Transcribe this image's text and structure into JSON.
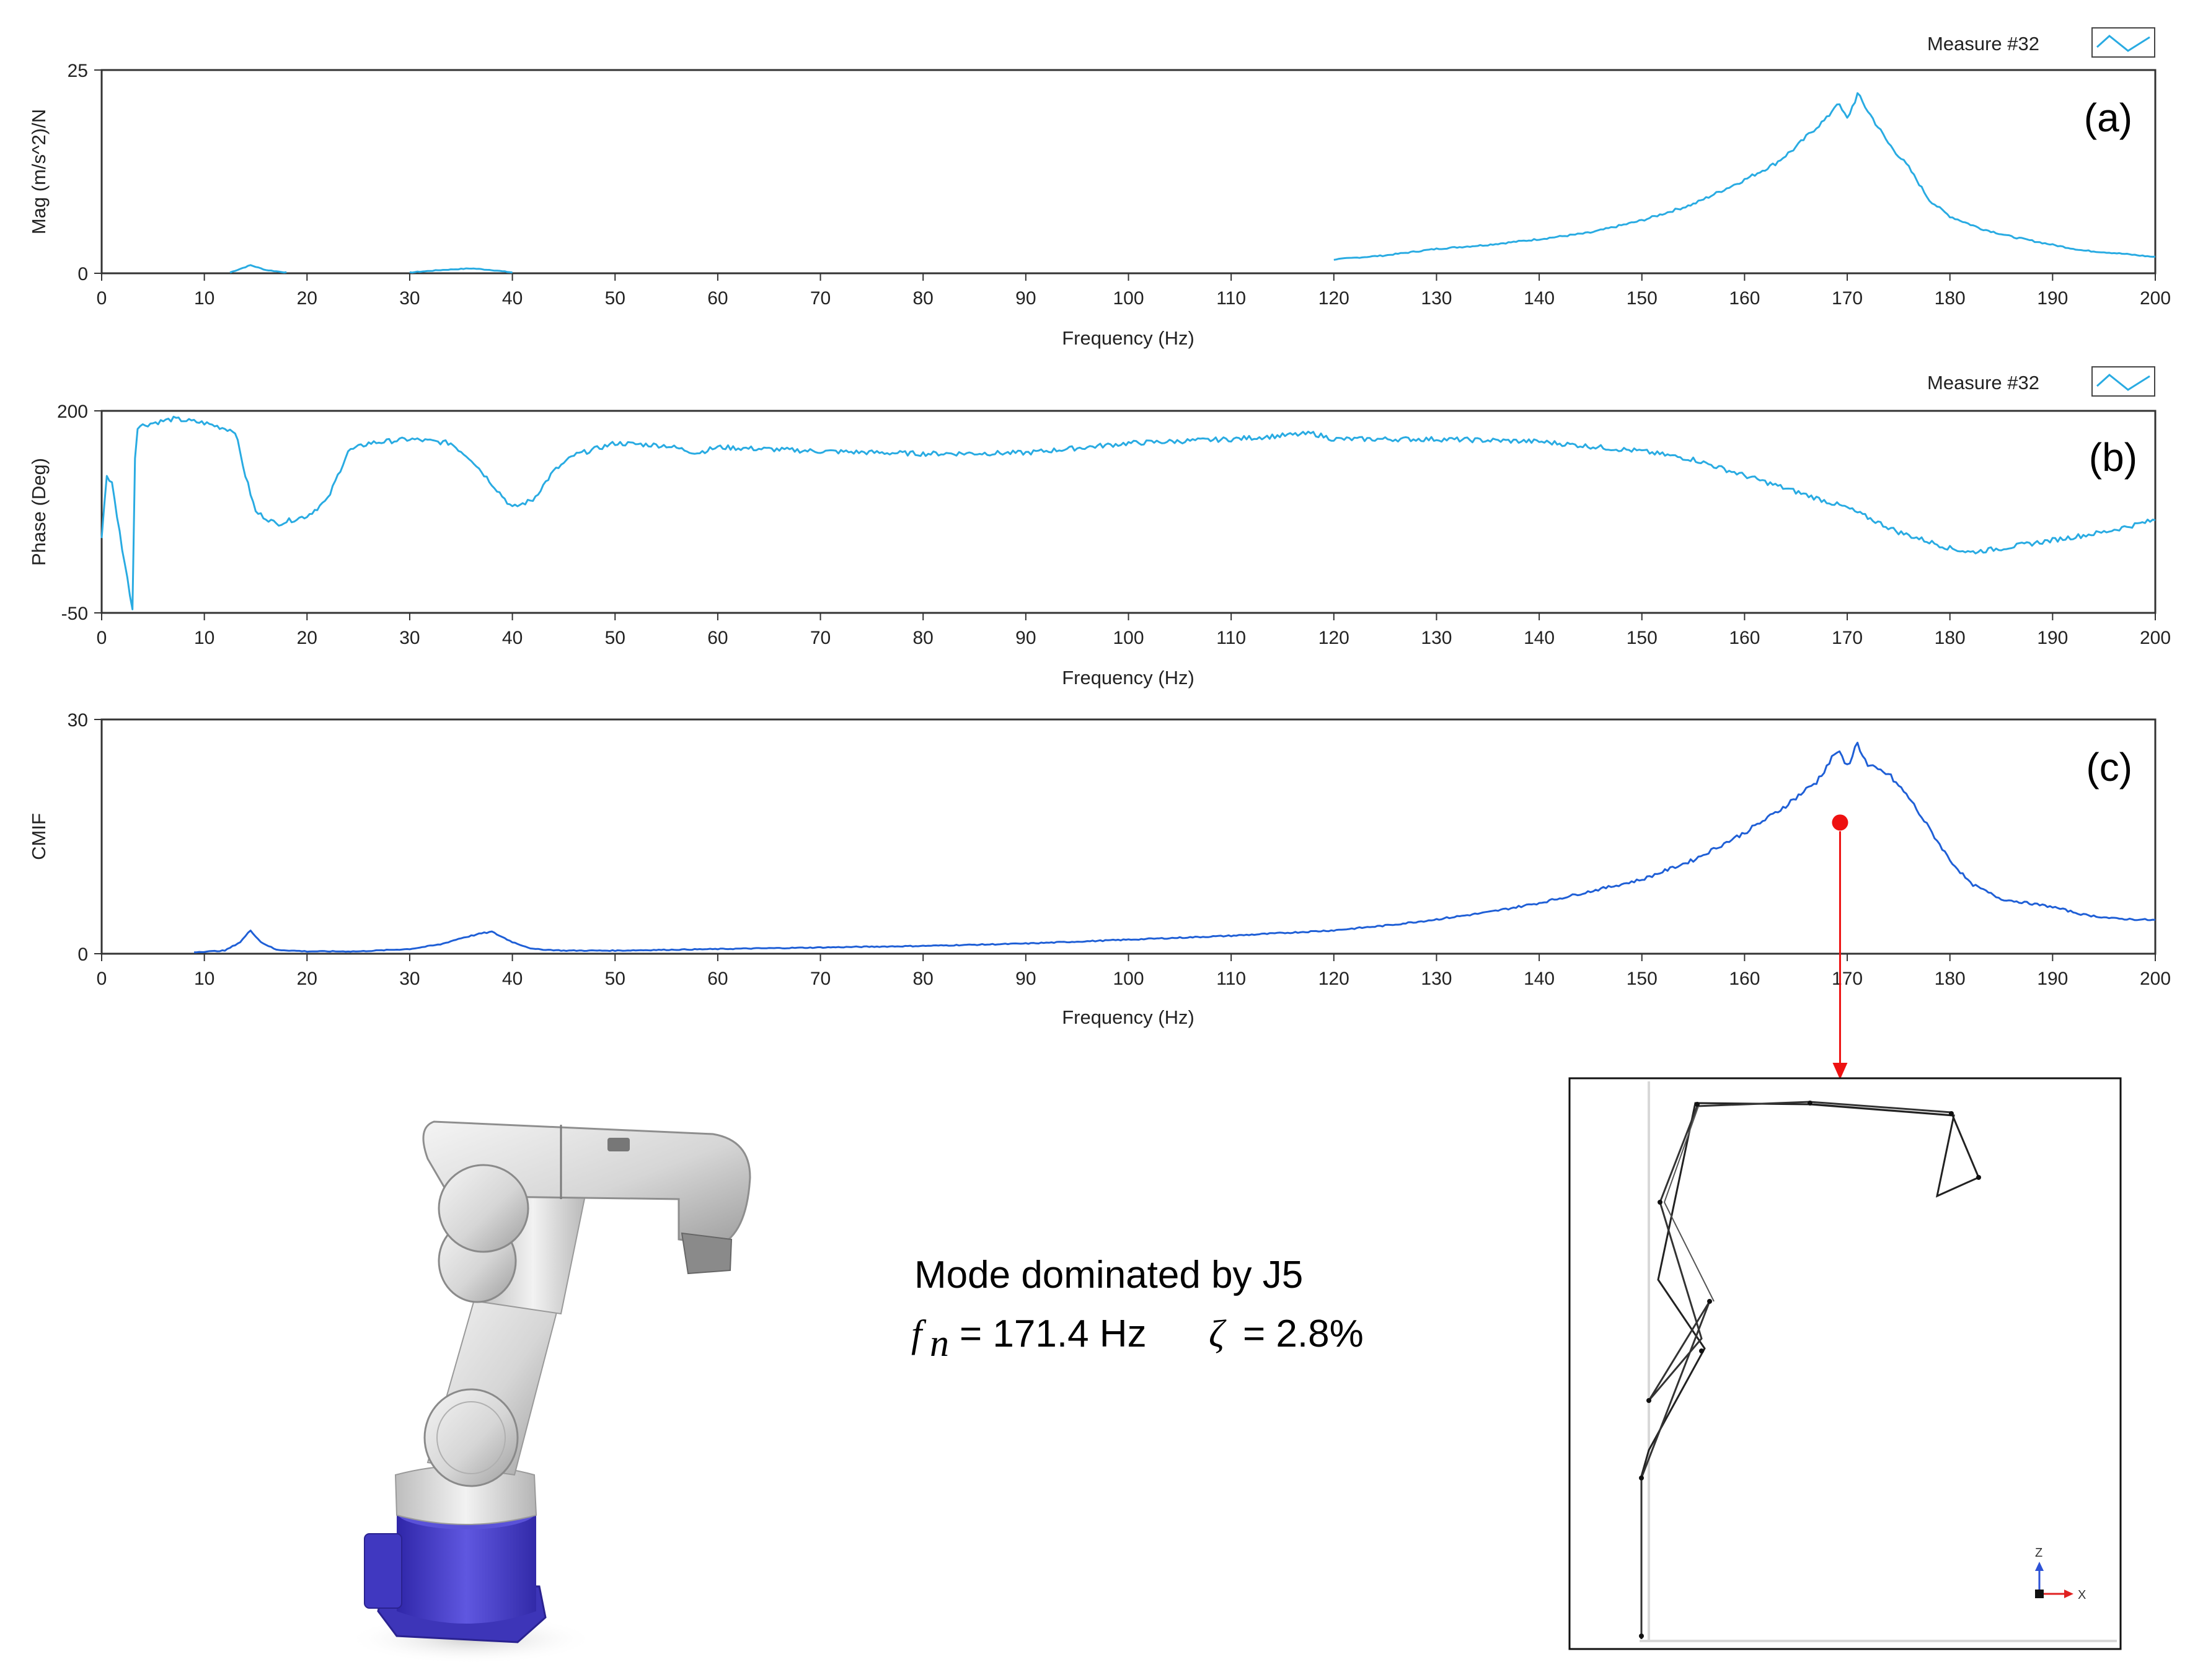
{
  "colors": {
    "series": "#29abe2",
    "cmif": "#1f5fd6",
    "marker": "#ee1111",
    "frame": "#333333",
    "robot_base": "#4b43c8"
  },
  "icons": {
    "legend": "legend-line-swatch-icon",
    "robot": "robot-arm-illustration",
    "mode_shape": "mode-shape-wireframe",
    "axes": "xz-axis-triad-icon"
  },
  "panel_a": {
    "label": "(a)",
    "legend": "Measure #32"
  },
  "panel_b": {
    "label": "(b)",
    "legend": "Measure #32"
  },
  "panel_c": {
    "label": "(c)"
  },
  "mode": {
    "title": "Mode dominated  by J5",
    "fn_symbol": "f",
    "fn_sub": "n",
    "fn_value": "= 171.4 Hz",
    "zeta_symbol": "ζ",
    "zeta_value": "= 2.8%"
  },
  "mode_shape": {
    "z_label": "Z",
    "x_label": "X"
  },
  "chart_data": [
    {
      "type": "line",
      "panel": "(a)",
      "xlabel": "Frequency (Hz)",
      "ylabel": "Mag  (m/s^2)/N",
      "xlim": [
        0,
        200
      ],
      "ylim": [
        0,
        25
      ],
      "xticks": [
        0,
        10,
        20,
        30,
        40,
        50,
        60,
        70,
        80,
        90,
        100,
        110,
        120,
        130,
        140,
        150,
        160,
        170,
        180,
        190,
        200
      ],
      "yticks": [
        0,
        25
      ],
      "legend": "top-right",
      "grid": false,
      "series": [
        {
          "name": "Measure #32",
          "x": [
            12.5,
            14.5,
            16,
            18,
            30,
            33,
            36,
            38,
            40,
            50,
            60,
            70,
            80,
            90,
            100,
            110,
            120,
            125,
            130,
            135,
            140,
            145,
            150,
            155,
            160,
            163,
            165,
            167,
            168,
            169,
            170,
            171,
            172,
            174,
            176,
            178,
            180,
            183,
            186,
            190,
            193,
            196,
            200
          ],
          "y": [
            0.1,
            1.0,
            0.4,
            0.1,
            0.1,
            0.4,
            0.6,
            0.4,
            0.1,
            0.2,
            0.2,
            0.3,
            0.4,
            0.6,
            0.8,
            1.1,
            1.7,
            2.2,
            3.0,
            3.5,
            4.2,
            5.0,
            6.5,
            8.5,
            11.5,
            13.5,
            15.5,
            18,
            19,
            21,
            19,
            22,
            20,
            16,
            13,
            9,
            7,
            5.5,
            4.5,
            3.5,
            2.8,
            2.5,
            2.0
          ]
        }
      ]
    },
    {
      "type": "line",
      "panel": "(b)",
      "xlabel": "Frequency (Hz)",
      "ylabel": "Phase (Deg)",
      "xlim": [
        0,
        200
      ],
      "ylim": [
        -50,
        200
      ],
      "xticks": [
        0,
        10,
        20,
        30,
        40,
        50,
        60,
        70,
        80,
        90,
        100,
        110,
        120,
        130,
        140,
        150,
        160,
        170,
        180,
        190,
        200
      ],
      "yticks": [
        -50,
        200
      ],
      "legend": "top-right",
      "grid": false,
      "series": [
        {
          "name": "Measure #32",
          "x": [
            0,
            0.5,
            1,
            2,
            3,
            3.3,
            5,
            7,
            10,
            13,
            14,
            15,
            17,
            20,
            22,
            24,
            26,
            30,
            34,
            36,
            38,
            40,
            42,
            44,
            46,
            50,
            55,
            58,
            60,
            70,
            80,
            90,
            100,
            110,
            118,
            120,
            130,
            140,
            150,
            155,
            160,
            165,
            170,
            175,
            180,
            182,
            185,
            190,
            195,
            200
          ],
          "y": [
            45,
            120,
            110,
            30,
            -45,
            180,
            185,
            190,
            185,
            175,
            120,
            75,
            60,
            70,
            90,
            150,
            160,
            165,
            160,
            140,
            110,
            80,
            90,
            125,
            145,
            160,
            157,
            148,
            155,
            150,
            147,
            148,
            160,
            165,
            172,
            165,
            165,
            162,
            150,
            140,
            120,
            100,
            80,
            50,
            30,
            25,
            30,
            40,
            50,
            65
          ]
        }
      ]
    },
    {
      "type": "line",
      "panel": "(c)",
      "xlabel": "Frequency (Hz)",
      "ylabel": "CMIF",
      "xlim": [
        0,
        200
      ],
      "ylim": [
        0,
        30
      ],
      "xticks": [
        0,
        10,
        20,
        30,
        40,
        50,
        60,
        70,
        80,
        90,
        100,
        110,
        120,
        130,
        140,
        150,
        160,
        170,
        180,
        190,
        200
      ],
      "yticks": [
        0,
        30
      ],
      "grid": false,
      "series": [
        {
          "x": [
            9,
            12,
            13.5,
            14.5,
            15.5,
            17,
            20,
            25,
            30,
            33,
            35,
            37,
            38,
            40,
            42,
            45,
            50,
            60,
            70,
            80,
            90,
            100,
            110,
            120,
            125,
            130,
            135,
            140,
            145,
            150,
            155,
            160,
            163,
            165,
            167,
            168,
            169,
            170,
            171,
            172,
            174,
            176,
            178,
            180,
            182,
            185,
            190,
            193,
            196,
            200
          ],
          "y": [
            0.2,
            0.4,
            1.5,
            3.0,
            1.5,
            0.5,
            0.3,
            0.3,
            0.6,
            1.2,
            2.0,
            2.6,
            2.8,
            1.5,
            0.6,
            0.4,
            0.4,
            0.6,
            0.8,
            1.0,
            1.3,
            1.8,
            2.3,
            3.0,
            3.6,
            4.4,
            5.3,
            6.5,
            8.0,
            9.5,
            12,
            15.5,
            18,
            20,
            22,
            24,
            26,
            24,
            27,
            24,
            23,
            20,
            16,
            12,
            9,
            7,
            6,
            5,
            4.5,
            4.3
          ]
        }
      ],
      "annotations": [
        {
          "type": "marker",
          "x": 169.3,
          "y": 16.8
        },
        {
          "type": "arrow",
          "from_x": 169.3,
          "to": "mode-shape-panel"
        }
      ]
    }
  ]
}
